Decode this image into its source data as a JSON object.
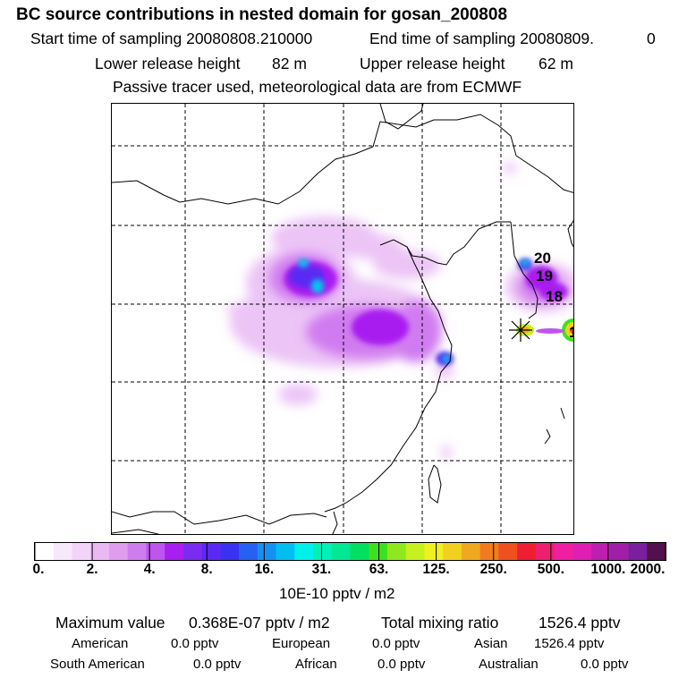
{
  "header": {
    "title": "BC  source contributions in nested domain for gosan_200808",
    "start_label": "Start time of sampling 20080808.210000",
    "end_label": "End time of sampling 20080809.",
    "end_value": "0",
    "lower_label": "Lower release height",
    "lower_value": "82 m",
    "upper_label": "Upper release height",
    "upper_value": "62 m",
    "tracer_note": "Passive tracer used, meteorological data are from ECMWF"
  },
  "map": {
    "source_labels": [
      "20",
      "19",
      "18",
      "1"
    ],
    "icons": [
      "release-site-star-icon"
    ]
  },
  "colorbar": {
    "colors": [
      "#ffffff",
      "#f8e8fb",
      "#f2d4f8",
      "#eab9f4",
      "#e09df0",
      "#cf7cef",
      "#bd55ef",
      "#a91ef0",
      "#7c2bf0",
      "#5a2af2",
      "#3a32f2",
      "#2760f2",
      "#1490f2",
      "#00bef2",
      "#00f0ea",
      "#00f0b8",
      "#00e894",
      "#00e060",
      "#3fe01e",
      "#8ee81e",
      "#c6f01e",
      "#f0f01e",
      "#f0d21e",
      "#f0a81e",
      "#f07c1e",
      "#f0501e",
      "#f01e32",
      "#f01e6e",
      "#f01ea0",
      "#e01eb4",
      "#c01eb0",
      "#a01ea8",
      "#7c1ea0",
      "#54104c"
    ],
    "tick_labels": [
      "0.",
      "2.",
      "4.",
      "8.",
      "16.",
      "31.",
      "63.",
      "125.",
      "250.",
      "500.",
      "1000.",
      "2000."
    ],
    "units": "10E-10 pptv / m2"
  },
  "footer": {
    "max_label": "Maximum value",
    "max_value": "0.368E-07 pptv / m2",
    "total_label": "Total mixing ratio",
    "total_value": "1526.4 pptv",
    "regions": [
      {
        "name": "American",
        "value": "0.0 pptv"
      },
      {
        "name": "European",
        "value": "0.0 pptv"
      },
      {
        "name": "Asian",
        "value": "1526.4 pptv"
      },
      {
        "name": "South American",
        "value": "0.0 pptv"
      },
      {
        "name": "African",
        "value": "0.0 pptv"
      },
      {
        "name": "Australian",
        "value": "0.0 pptv"
      }
    ]
  }
}
